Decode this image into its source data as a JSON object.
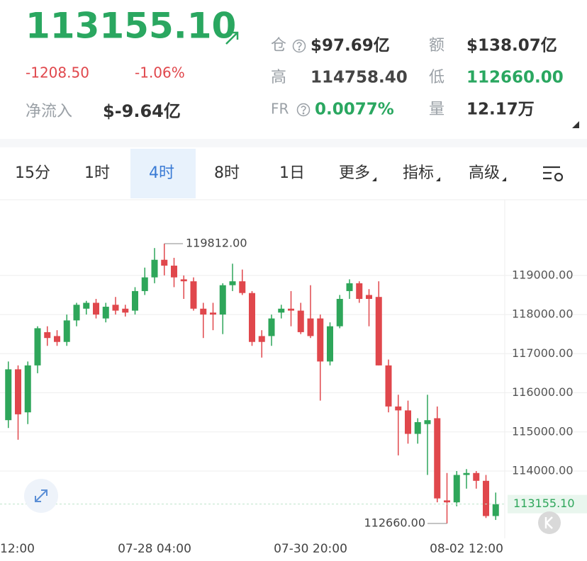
{
  "header": {
    "price": "113155.10",
    "change": "-1208.50",
    "change_pct": "-1.06%",
    "net_inflow_label": "净流入",
    "net_inflow": "$-9.64亿",
    "stats": [
      {
        "label": "仓",
        "value": "$97.69亿"
      },
      {
        "label": "额",
        "value": "$138.07亿"
      },
      {
        "label": "高",
        "value": "114758.40"
      },
      {
        "label": "低",
        "value": "112660.00"
      },
      {
        "label": "FR",
        "value": "0.0077%"
      },
      {
        "label": "量",
        "value": "12.17万"
      }
    ]
  },
  "tabs": [
    "15分",
    "1时",
    "4时",
    "8时",
    "1日",
    "更多",
    "指标",
    "高级"
  ],
  "chart_data": {
    "type": "candlestick",
    "up_color": "#2ea65a",
    "down_color": "#e0474c",
    "grid": true,
    "categories": [
      "12:00",
      null,
      null,
      null,
      null,
      null,
      null,
      null,
      null,
      null,
      null,
      null,
      null,
      null,
      null,
      null,
      "07-28 04:00",
      null,
      null,
      null,
      null,
      null,
      null,
      null,
      null,
      null,
      null,
      null,
      null,
      null,
      null,
      null,
      "07-30 20:00",
      null,
      null,
      null,
      null,
      null,
      null,
      null,
      null,
      null,
      null,
      null,
      null,
      null,
      null,
      null,
      "08-02 12:00",
      null,
      null,
      null
    ],
    "open": [
      null,
      115300,
      116600,
      115500,
      116700,
      117550,
      117450,
      117300,
      117850,
      118150,
      118300,
      117900,
      118250,
      118150,
      118100,
      118600,
      118950,
      119400,
      119250,
      118900,
      118850,
      118150,
      118050,
      118000,
      118750,
      118850,
      118550,
      117450,
      117450,
      118050,
      118150,
      118100,
      117900,
      117900,
      116800,
      117700,
      118600,
      118800,
      118500,
      118450,
      116700,
      115650,
      115550,
      114950,
      115200,
      115350,
      113250,
      113200,
      113900,
      113950,
      113750,
      112850
    ],
    "high": [
      null,
      116800,
      116700,
      116800,
      117700,
      117700,
      117600,
      118000,
      118300,
      118350,
      118400,
      118300,
      118450,
      118250,
      118700,
      119200,
      119700,
      119812,
      119450,
      119000,
      118950,
      118300,
      118300,
      118800,
      119300,
      119150,
      118600,
      117600,
      118000,
      118250,
      118600,
      118300,
      118750,
      118000,
      117800,
      118500,
      118900,
      118850,
      118650,
      118850,
      116850,
      115950,
      115800,
      115350,
      115950,
      115650,
      113950,
      114000,
      114050,
      114000,
      113900,
      113450
    ],
    "low": [
      null,
      115100,
      114800,
      115200,
      116500,
      117200,
      117200,
      117200,
      117700,
      118000,
      117900,
      117800,
      118000,
      117950,
      118000,
      118500,
      118800,
      119000,
      118700,
      118400,
      118100,
      117400,
      117600,
      117500,
      118600,
      118500,
      117200,
      116900,
      117200,
      117900,
      117700,
      117500,
      117400,
      115800,
      116700,
      117650,
      118400,
      118300,
      117700,
      116700,
      115500,
      114400,
      114700,
      114700,
      113900,
      113200,
      112660,
      113100,
      113550,
      113550,
      112800,
      112750
    ],
    "close": [
      null,
      116600,
      115450,
      116700,
      117650,
      117400,
      117300,
      117850,
      118250,
      118300,
      118000,
      118200,
      118100,
      118050,
      118600,
      118950,
      119400,
      119250,
      118950,
      118850,
      118150,
      118000,
      118000,
      118750,
      118850,
      118550,
      117300,
      117300,
      117900,
      118150,
      118100,
      117550,
      117450,
      116800,
      117700,
      118400,
      118800,
      118400,
      118400,
      116700,
      115650,
      115550,
      114950,
      115250,
      115300,
      113300,
      113200,
      113900,
      113950,
      113750,
      112850,
      113155.1
    ],
    "ylim": [
      112280,
      120880
    ],
    "yticks": [
      {
        "value": 114000,
        "label": "114000.00"
      },
      {
        "value": 115000,
        "label": "115000.00"
      },
      {
        "value": 116000,
        "label": "116000.00"
      },
      {
        "value": 117000,
        "label": "117000.00"
      },
      {
        "value": 118000,
        "label": "118000.00"
      },
      {
        "value": 119000,
        "label": "119000.00"
      }
    ],
    "max_annotation": {
      "value": 119812,
      "label": "119812.00"
    },
    "min_annotation": {
      "value": 112660,
      "label": "112660.00"
    },
    "last_annotation": {
      "value": 113155.1,
      "label": "113155.10"
    }
  }
}
